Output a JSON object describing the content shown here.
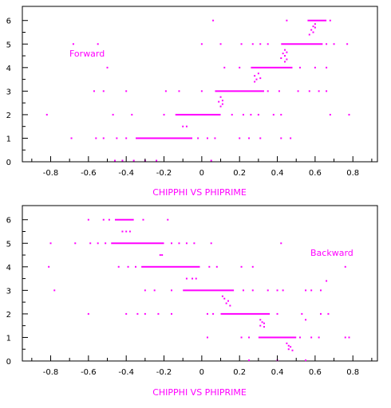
{
  "accent_color": "#ff00ff",
  "axis_color": "#000000",
  "chart_data": [
    {
      "type": "scatter",
      "title": "",
      "xlabel": "CHIPPHI VS PHIPRIME",
      "ylabel": "",
      "xlim": [
        -0.95,
        0.93
      ],
      "ylim": [
        0,
        6.6
      ],
      "x_ticks": [
        "-0.8",
        "-0.6",
        "-0.4",
        "-0.2",
        "0",
        "0.2",
        "0.4",
        "0.6",
        "0.8"
      ],
      "y_ticks": [
        "0",
        "1",
        "2",
        "3",
        "4",
        "5",
        "6"
      ],
      "annotation": "Forward",
      "grid": false,
      "series": [
        {
          "name": "",
          "segments": [
            {
              "y": 6,
              "x0": 0.56,
              "x1": 0.66
            },
            {
              "y": 5,
              "x0": 0.42,
              "x1": 0.64
            },
            {
              "y": 4,
              "x0": 0.26,
              "x1": 0.48
            },
            {
              "y": 3,
              "x0": 0.07,
              "x1": 0.33
            },
            {
              "y": 2,
              "x0": -0.14,
              "x1": 0.1
            },
            {
              "y": 1,
              "x0": -0.35,
              "x1": -0.05
            }
          ],
          "points": [
            [
              0.06,
              6.0
            ],
            [
              0.45,
              6.0
            ],
            [
              0.68,
              6.0
            ],
            [
              0.6,
              5.85
            ],
            [
              0.59,
              5.75
            ],
            [
              0.6,
              5.7
            ],
            [
              0.58,
              5.6
            ],
            [
              0.59,
              5.5
            ],
            [
              0.57,
              5.4
            ],
            [
              -0.68,
              5.0
            ],
            [
              -0.55,
              5.0
            ],
            [
              0.0,
              5.0
            ],
            [
              0.1,
              5.0
            ],
            [
              0.21,
              5.0
            ],
            [
              0.27,
              5.0
            ],
            [
              0.31,
              5.0
            ],
            [
              0.35,
              5.0
            ],
            [
              0.66,
              5.0
            ],
            [
              0.7,
              5.0
            ],
            [
              0.77,
              5.0
            ],
            [
              0.44,
              4.75
            ],
            [
              0.45,
              4.65
            ],
            [
              0.43,
              4.6
            ],
            [
              0.44,
              4.5
            ],
            [
              0.42,
              4.4
            ],
            [
              0.45,
              4.35
            ],
            [
              0.44,
              4.25
            ],
            [
              -0.5,
              4.0
            ],
            [
              0.12,
              4.0
            ],
            [
              0.2,
              4.0
            ],
            [
              0.52,
              4.0
            ],
            [
              0.6,
              4.0
            ],
            [
              0.66,
              4.0
            ],
            [
              0.3,
              3.75
            ],
            [
              0.28,
              3.65
            ],
            [
              0.31,
              3.55
            ],
            [
              0.29,
              3.5
            ],
            [
              0.28,
              3.4
            ],
            [
              -0.57,
              3.0
            ],
            [
              -0.52,
              3.0
            ],
            [
              -0.4,
              3.0
            ],
            [
              -0.19,
              3.0
            ],
            [
              -0.12,
              3.0
            ],
            [
              0.0,
              3.0
            ],
            [
              0.35,
              3.0
            ],
            [
              0.41,
              3.0
            ],
            [
              0.51,
              3.0
            ],
            [
              0.57,
              3.0
            ],
            [
              0.62,
              3.0
            ],
            [
              0.66,
              3.0
            ],
            [
              0.1,
              2.75
            ],
            [
              0.11,
              2.6
            ],
            [
              0.09,
              2.55
            ],
            [
              0.11,
              2.45
            ],
            [
              0.1,
              2.35
            ],
            [
              -0.82,
              2.0
            ],
            [
              -0.47,
              2.0
            ],
            [
              -0.37,
              2.0
            ],
            [
              -0.2,
              2.0
            ],
            [
              0.16,
              2.0
            ],
            [
              0.22,
              2.0
            ],
            [
              0.26,
              2.0
            ],
            [
              0.3,
              2.0
            ],
            [
              0.38,
              2.0
            ],
            [
              0.42,
              2.0
            ],
            [
              0.68,
              2.0
            ],
            [
              0.78,
              2.0
            ],
            [
              -0.1,
              1.5
            ],
            [
              -0.08,
              1.5
            ],
            [
              -0.69,
              1.0
            ],
            [
              -0.56,
              1.0
            ],
            [
              -0.52,
              1.0
            ],
            [
              -0.45,
              1.0
            ],
            [
              -0.4,
              1.0
            ],
            [
              -0.02,
              1.0
            ],
            [
              0.03,
              1.0
            ],
            [
              0.07,
              1.0
            ],
            [
              0.2,
              1.0
            ],
            [
              0.25,
              1.0
            ],
            [
              0.31,
              1.0
            ],
            [
              0.42,
              1.0
            ],
            [
              0.47,
              1.0
            ],
            [
              -0.46,
              0.05
            ],
            [
              -0.42,
              0.05
            ],
            [
              -0.36,
              0.05
            ],
            [
              -0.3,
              0.05
            ],
            [
              -0.24,
              0.05
            ],
            [
              0.05,
              0.05
            ]
          ]
        }
      ]
    },
    {
      "type": "scatter",
      "title": "",
      "xlabel": "CHIPPHI VS PHIPRIME",
      "ylabel": "",
      "xlim": [
        -0.95,
        0.93
      ],
      "ylim": [
        0,
        6.6
      ],
      "x_ticks": [
        "-0.8",
        "-0.6",
        "-0.4",
        "-0.2",
        "0",
        "0.2",
        "0.4",
        "0.6",
        "0.8"
      ],
      "y_ticks": [
        "0",
        "1",
        "2",
        "3",
        "4",
        "5",
        "6"
      ],
      "annotation": "Backward",
      "grid": false,
      "series": [
        {
          "name": "",
          "segments": [
            {
              "y": 6,
              "x0": -0.46,
              "x1": -0.36
            },
            {
              "y": 5,
              "x0": -0.48,
              "x1": -0.2
            },
            {
              "y": 4,
              "x0": -0.32,
              "x1": -0.01
            },
            {
              "y": 3,
              "x0": -0.1,
              "x1": 0.17
            },
            {
              "y": 2,
              "x0": 0.1,
              "x1": 0.36
            },
            {
              "y": 1,
              "x0": 0.3,
              "x1": 0.5
            }
          ],
          "points": [
            [
              -0.6,
              6.0
            ],
            [
              -0.52,
              6.0
            ],
            [
              -0.49,
              6.0
            ],
            [
              -0.31,
              6.0
            ],
            [
              -0.18,
              6.0
            ],
            [
              -0.42,
              5.5
            ],
            [
              -0.4,
              5.5
            ],
            [
              -0.38,
              5.5
            ],
            [
              -0.8,
              5.0
            ],
            [
              -0.67,
              5.0
            ],
            [
              -0.59,
              5.0
            ],
            [
              -0.55,
              5.0
            ],
            [
              -0.51,
              5.0
            ],
            [
              -0.16,
              5.0
            ],
            [
              -0.12,
              5.0
            ],
            [
              -0.08,
              5.0
            ],
            [
              -0.04,
              5.0
            ],
            [
              0.05,
              5.0
            ],
            [
              0.42,
              5.0
            ],
            [
              -0.22,
              4.5
            ],
            [
              -0.21,
              4.5
            ],
            [
              -0.81,
              4.0
            ],
            [
              -0.44,
              4.0
            ],
            [
              -0.39,
              4.0
            ],
            [
              -0.35,
              4.0
            ],
            [
              0.04,
              4.0
            ],
            [
              0.08,
              4.0
            ],
            [
              0.21,
              4.0
            ],
            [
              0.27,
              4.0
            ],
            [
              0.76,
              4.0
            ],
            [
              -0.08,
              3.5
            ],
            [
              -0.05,
              3.5
            ],
            [
              -0.03,
              3.5
            ],
            [
              0.66,
              3.4
            ],
            [
              -0.78,
              3.0
            ],
            [
              -0.3,
              3.0
            ],
            [
              -0.25,
              3.0
            ],
            [
              -0.16,
              3.0
            ],
            [
              0.22,
              3.0
            ],
            [
              0.27,
              3.0
            ],
            [
              0.35,
              3.0
            ],
            [
              0.4,
              3.0
            ],
            [
              0.43,
              3.0
            ],
            [
              0.55,
              3.0
            ],
            [
              0.58,
              3.0
            ],
            [
              0.63,
              3.0
            ],
            [
              0.11,
              2.75
            ],
            [
              0.12,
              2.65
            ],
            [
              0.14,
              2.55
            ],
            [
              0.13,
              2.45
            ],
            [
              0.15,
              2.35
            ],
            [
              -0.6,
              2.0
            ],
            [
              -0.4,
              2.0
            ],
            [
              -0.34,
              2.0
            ],
            [
              -0.3,
              2.0
            ],
            [
              -0.23,
              2.0
            ],
            [
              -0.16,
              2.0
            ],
            [
              0.03,
              2.0
            ],
            [
              0.06,
              2.0
            ],
            [
              0.4,
              2.0
            ],
            [
              0.53,
              2.0
            ],
            [
              0.63,
              2.0
            ],
            [
              0.67,
              2.0
            ],
            [
              0.31,
              1.75
            ],
            [
              0.32,
              1.65
            ],
            [
              0.33,
              1.6
            ],
            [
              0.31,
              1.5
            ],
            [
              0.33,
              1.45
            ],
            [
              0.55,
              1.75
            ],
            [
              0.03,
              1.0
            ],
            [
              0.21,
              1.0
            ],
            [
              0.25,
              1.0
            ],
            [
              0.52,
              1.0
            ],
            [
              0.58,
              1.0
            ],
            [
              0.62,
              1.0
            ],
            [
              0.76,
              1.0
            ],
            [
              0.78,
              1.0
            ],
            [
              0.45,
              0.75
            ],
            [
              0.46,
              0.65
            ],
            [
              0.47,
              0.6
            ],
            [
              0.46,
              0.5
            ],
            [
              0.48,
              0.45
            ],
            [
              0.25,
              0.03
            ],
            [
              0.4,
              0.03
            ],
            [
              0.55,
              0.03
            ]
          ]
        }
      ]
    }
  ]
}
